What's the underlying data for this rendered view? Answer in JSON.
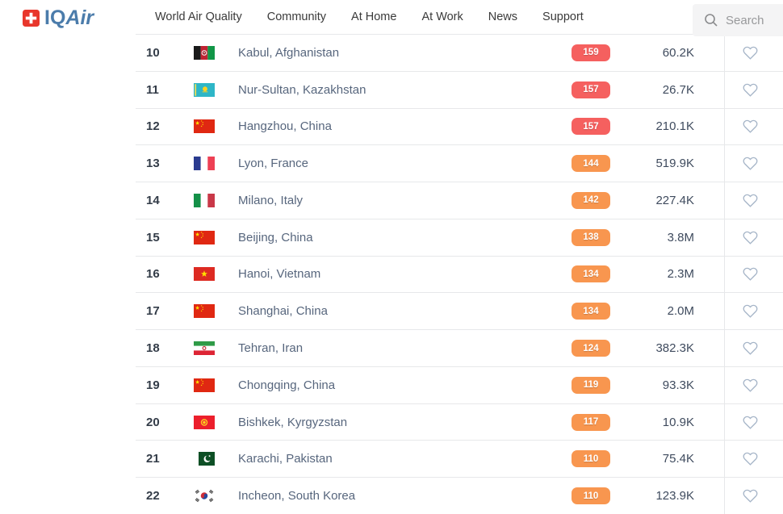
{
  "header": {
    "logo": {
      "iq": "IQ",
      "air": "Air"
    },
    "nav": [
      {
        "label": "World Air Quality"
      },
      {
        "label": "Community"
      },
      {
        "label": "At Home"
      },
      {
        "label": "At Work"
      },
      {
        "label": "News"
      },
      {
        "label": "Support"
      }
    ],
    "search": {
      "placeholder": "Search"
    }
  },
  "colors": {
    "unhealthy": "#f5605f",
    "usg": "#f8964f",
    "logo_blue": "#4b7cab",
    "heart_outline": "#a6b5c8"
  },
  "table": {
    "rows": [
      {
        "rank": "10",
        "flag": "af",
        "city": "Kabul, Afghanistan",
        "aqi": "159",
        "level": "unhealthy",
        "followers": "60.2K"
      },
      {
        "rank": "11",
        "flag": "kz",
        "city": "Nur-Sultan, Kazakhstan",
        "aqi": "157",
        "level": "unhealthy",
        "followers": "26.7K"
      },
      {
        "rank": "12",
        "flag": "cn",
        "city": "Hangzhou, China",
        "aqi": "157",
        "level": "unhealthy",
        "followers": "210.1K"
      },
      {
        "rank": "13",
        "flag": "fr",
        "city": "Lyon, France",
        "aqi": "144",
        "level": "usg",
        "followers": "519.9K"
      },
      {
        "rank": "14",
        "flag": "it",
        "city": "Milano, Italy",
        "aqi": "142",
        "level": "usg",
        "followers": "227.4K"
      },
      {
        "rank": "15",
        "flag": "cn",
        "city": "Beijing, China",
        "aqi": "138",
        "level": "usg",
        "followers": "3.8M"
      },
      {
        "rank": "16",
        "flag": "vn",
        "city": "Hanoi, Vietnam",
        "aqi": "134",
        "level": "usg",
        "followers": "2.3M"
      },
      {
        "rank": "17",
        "flag": "cn",
        "city": "Shanghai, China",
        "aqi": "134",
        "level": "usg",
        "followers": "2.0M"
      },
      {
        "rank": "18",
        "flag": "ir",
        "city": "Tehran, Iran",
        "aqi": "124",
        "level": "usg",
        "followers": "382.3K"
      },
      {
        "rank": "19",
        "flag": "cn",
        "city": "Chongqing, China",
        "aqi": "119",
        "level": "usg",
        "followers": "93.3K"
      },
      {
        "rank": "20",
        "flag": "kg",
        "city": "Bishkek, Kyrgyzstan",
        "aqi": "117",
        "level": "usg",
        "followers": "10.9K"
      },
      {
        "rank": "21",
        "flag": "pk",
        "city": "Karachi, Pakistan",
        "aqi": "110",
        "level": "usg",
        "followers": "75.4K"
      },
      {
        "rank": "22",
        "flag": "kr",
        "city": "Incheon, South Korea",
        "aqi": "110",
        "level": "usg",
        "followers": "123.9K"
      }
    ]
  }
}
